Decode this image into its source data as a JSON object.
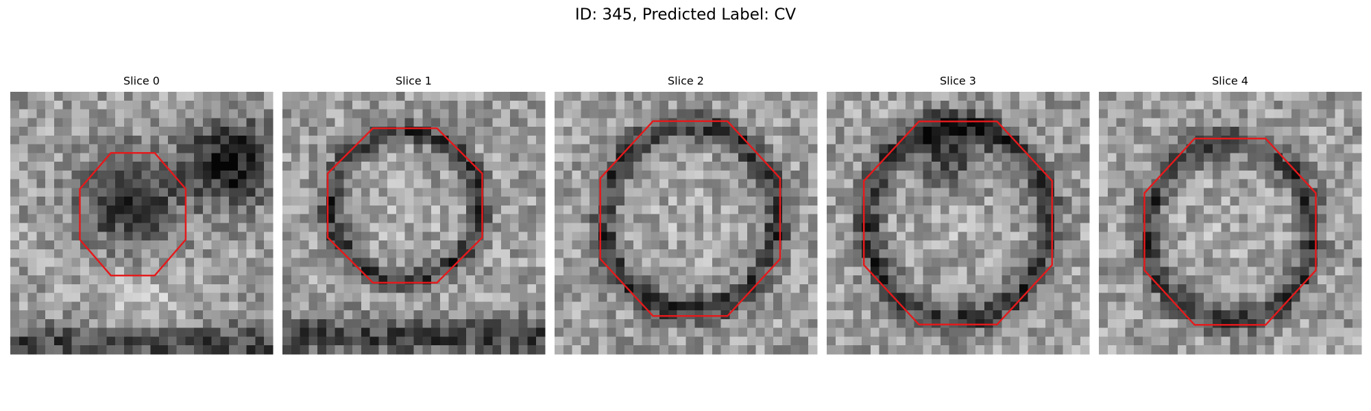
{
  "title": "ID: 345, Predicted Label: CV",
  "panels": [
    {
      "label": "Slice 0"
    },
    {
      "label": "Slice 1"
    },
    {
      "label": "Slice 2"
    },
    {
      "label": "Slice 3"
    },
    {
      "label": "Slice 4"
    }
  ]
}
